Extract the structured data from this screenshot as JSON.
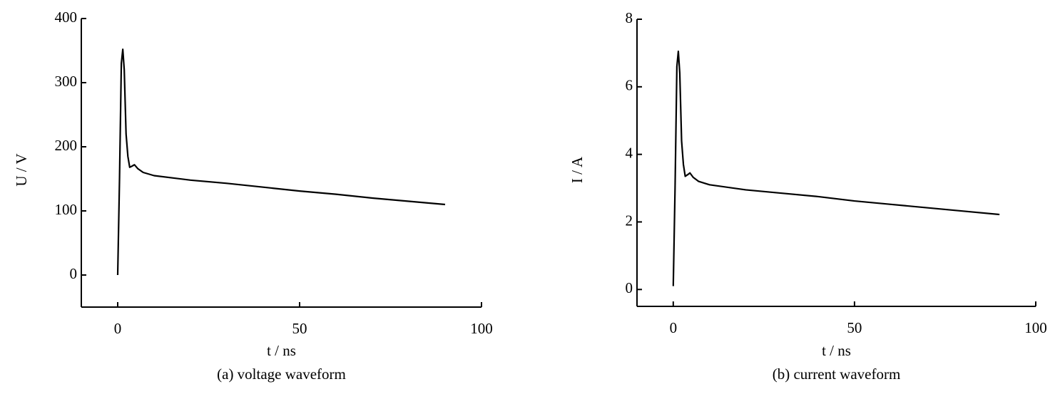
{
  "chart_data": [
    {
      "type": "line",
      "caption": "(a) voltage waveform",
      "xlabel": "t / ns",
      "ylabel": "U / V",
      "xlim": [
        -10,
        100
      ],
      "xticks": [
        0,
        50,
        100
      ],
      "ylim": [
        -50,
        400
      ],
      "yticks": [
        0,
        100,
        200,
        300,
        400
      ],
      "series": [
        {
          "name": "voltage",
          "color": "#000000",
          "x": [
            0,
            0.5,
            1,
            1.4,
            1.8,
            2.3,
            2.8,
            3.3,
            4,
            4.6,
            5.5,
            7,
            10,
            20,
            30,
            40,
            50,
            60,
            70,
            80,
            90
          ],
          "values": [
            0,
            150,
            330,
            352,
            320,
            220,
            185,
            168,
            170,
            172,
            166,
            160,
            155,
            148,
            143,
            137,
            131,
            126,
            120,
            115,
            110
          ]
        }
      ]
    },
    {
      "type": "line",
      "caption": "(b) current waveform",
      "xlabel": "t / ns",
      "ylabel": "I / A",
      "xlim": [
        -10,
        100
      ],
      "xticks": [
        0,
        50,
        100
      ],
      "ylim": [
        -0.5,
        8
      ],
      "yticks": [
        0,
        2,
        4,
        6,
        8
      ],
      "series": [
        {
          "name": "current",
          "color": "#000000",
          "x": [
            0,
            0.5,
            1,
            1.4,
            1.8,
            2.3,
            2.8,
            3.3,
            4,
            4.6,
            5.5,
            7,
            10,
            20,
            30,
            40,
            50,
            60,
            70,
            80,
            90
          ],
          "values": [
            0.1,
            3,
            6.6,
            7.05,
            6.4,
            4.4,
            3.7,
            3.35,
            3.4,
            3.45,
            3.32,
            3.2,
            3.1,
            2.95,
            2.85,
            2.75,
            2.62,
            2.52,
            2.42,
            2.32,
            2.22
          ]
        }
      ]
    }
  ]
}
